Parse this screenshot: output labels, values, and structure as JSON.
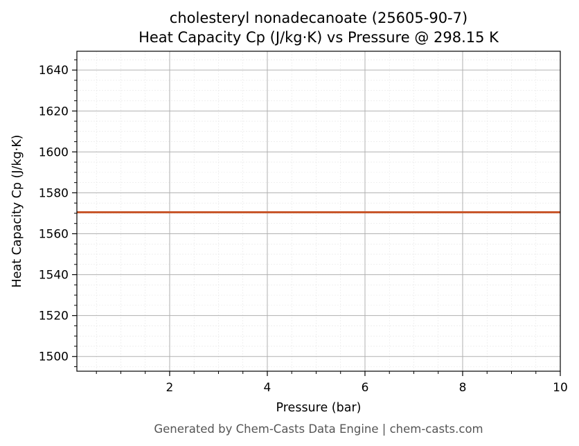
{
  "chart_data": {
    "type": "line",
    "title": "cholesteryl nonadecanoate (25605-90-7)",
    "subtitle": "Heat Capacity Cp (J/kg·K) vs Pressure @ 298.15 K",
    "xlabel": "Pressure (bar)",
    "ylabel": "Heat Capacity Cp (J/kg·K)",
    "xlim": [
      0.1,
      10
    ],
    "ylim": [
      1492.8,
      1649.2
    ],
    "x_ticks": [
      2,
      4,
      6,
      8,
      10
    ],
    "y_ticks": [
      1500,
      1520,
      1540,
      1560,
      1580,
      1600,
      1620,
      1640
    ],
    "grid": true,
    "series": [
      {
        "color": "#c8572b",
        "x": [
          0.1,
          10
        ],
        "y": [
          1570.5,
          1570.5
        ]
      }
    ]
  },
  "footer": "Generated by Chem-Casts Data Engine | chem-casts.com"
}
